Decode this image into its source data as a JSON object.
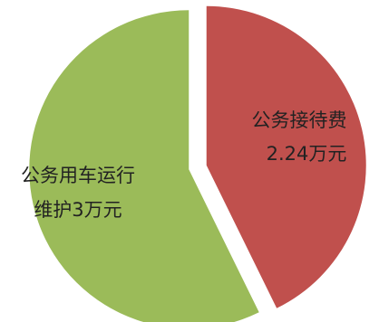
{
  "chart_data": {
    "type": "pie",
    "slices": [
      {
        "label_line1": "公务接待费",
        "label_line2": "2.24万元",
        "value": 2.24,
        "color": "#c0504d"
      },
      {
        "label_line1": "公务用车运行",
        "label_line2": "维护3万元",
        "value": 3,
        "color": "#9bbb59"
      }
    ],
    "exploded": true
  }
}
